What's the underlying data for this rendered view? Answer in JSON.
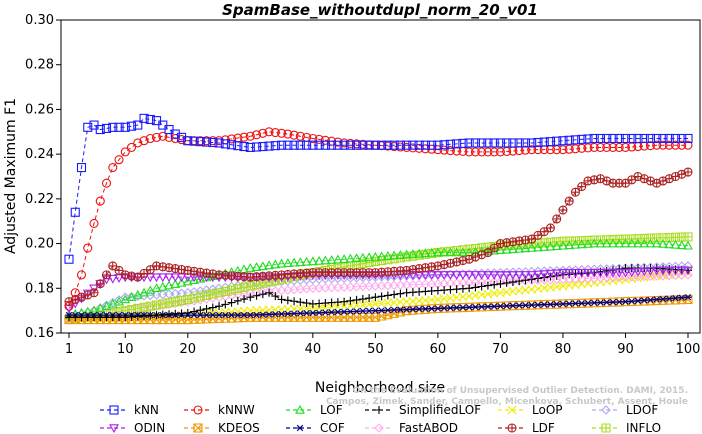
{
  "chart_data": {
    "type": "line",
    "title": "SpamBase_withoutdupl_norm_20_v01",
    "xlabel": "Neighborhood size",
    "ylabel": "Adjusted Maximum F1",
    "xlim": [
      1,
      100
    ],
    "ylim": [
      0.16,
      0.3
    ],
    "xticks": [
      "1",
      "10",
      "20",
      "30",
      "40",
      "50",
      "60",
      "70",
      "80",
      "90",
      "100"
    ],
    "yticks": [
      "0.16",
      "0.18",
      "0.20",
      "0.22",
      "0.24",
      "0.26",
      "0.28",
      "0.30"
    ],
    "legend_position": "bottom",
    "watermark": [
      "Campos, Zimek, Sander, Campello, Micenkova, Schubert, Assent, Houle",
      "On the Evaluation of Unsupervised Outlier Detection. DAMI, 2015."
    ],
    "series": [
      {
        "name": "kNN",
        "color": "#1a1aff",
        "marker": "square",
        "points": [
          [
            1,
            0.193
          ],
          [
            2,
            0.214
          ],
          [
            3,
            0.234
          ],
          [
            4,
            0.252
          ],
          [
            5,
            0.253
          ],
          [
            6,
            0.251
          ],
          [
            8,
            0.252
          ],
          [
            10,
            0.252
          ],
          [
            12,
            0.253
          ],
          [
            13,
            0.256
          ],
          [
            15,
            0.255
          ],
          [
            18,
            0.249
          ],
          [
            20,
            0.246
          ],
          [
            25,
            0.245
          ],
          [
            30,
            0.243
          ],
          [
            35,
            0.244
          ],
          [
            40,
            0.244
          ],
          [
            45,
            0.244
          ],
          [
            50,
            0.244
          ],
          [
            55,
            0.244
          ],
          [
            60,
            0.244
          ],
          [
            65,
            0.245
          ],
          [
            70,
            0.245
          ],
          [
            75,
            0.245
          ],
          [
            80,
            0.246
          ],
          [
            85,
            0.247
          ],
          [
            90,
            0.247
          ],
          [
            95,
            0.247
          ],
          [
            100,
            0.247
          ]
        ]
      },
      {
        "name": "kNNW",
        "color": "#ee1111",
        "marker": "circle",
        "points": [
          [
            1,
            0.172
          ],
          [
            2,
            0.178
          ],
          [
            3,
            0.186
          ],
          [
            4,
            0.198
          ],
          [
            5,
            0.209
          ],
          [
            6,
            0.219
          ],
          [
            7,
            0.227
          ],
          [
            8,
            0.234
          ],
          [
            10,
            0.241
          ],
          [
            12,
            0.245
          ],
          [
            14,
            0.247
          ],
          [
            16,
            0.248
          ],
          [
            20,
            0.246
          ],
          [
            25,
            0.246
          ],
          [
            30,
            0.248
          ],
          [
            33,
            0.25
          ],
          [
            36,
            0.249
          ],
          [
            40,
            0.247
          ],
          [
            45,
            0.245
          ],
          [
            50,
            0.244
          ],
          [
            55,
            0.243
          ],
          [
            60,
            0.242
          ],
          [
            65,
            0.241
          ],
          [
            70,
            0.241
          ],
          [
            75,
            0.242
          ],
          [
            80,
            0.242
          ],
          [
            85,
            0.243
          ],
          [
            90,
            0.243
          ],
          [
            95,
            0.244
          ],
          [
            100,
            0.244
          ]
        ]
      },
      {
        "name": "LOF",
        "color": "#22dd22",
        "marker": "triangle-up",
        "points": [
          [
            1,
            0.168
          ],
          [
            5,
            0.17
          ],
          [
            10,
            0.175
          ],
          [
            15,
            0.18
          ],
          [
            20,
            0.183
          ],
          [
            25,
            0.186
          ],
          [
            30,
            0.189
          ],
          [
            35,
            0.191
          ],
          [
            40,
            0.192
          ],
          [
            45,
            0.193
          ],
          [
            50,
            0.194
          ],
          [
            55,
            0.195
          ],
          [
            60,
            0.196
          ],
          [
            65,
            0.196
          ],
          [
            70,
            0.197
          ],
          [
            75,
            0.198
          ],
          [
            80,
            0.199
          ],
          [
            85,
            0.2
          ],
          [
            90,
            0.2
          ],
          [
            95,
            0.2
          ],
          [
            100,
            0.199
          ]
        ]
      },
      {
        "name": "SimplifiedLOF",
        "color": "#000000",
        "marker": "plus",
        "points": [
          [
            1,
            0.167
          ],
          [
            5,
            0.167
          ],
          [
            10,
            0.167
          ],
          [
            15,
            0.168
          ],
          [
            20,
            0.169
          ],
          [
            25,
            0.172
          ],
          [
            30,
            0.176
          ],
          [
            33,
            0.178
          ],
          [
            35,
            0.175
          ],
          [
            40,
            0.173
          ],
          [
            45,
            0.174
          ],
          [
            50,
            0.176
          ],
          [
            55,
            0.178
          ],
          [
            60,
            0.179
          ],
          [
            65,
            0.18
          ],
          [
            70,
            0.182
          ],
          [
            75,
            0.184
          ],
          [
            80,
            0.186
          ],
          [
            85,
            0.187
          ],
          [
            90,
            0.189
          ],
          [
            95,
            0.189
          ],
          [
            100,
            0.188
          ]
        ]
      },
      {
        "name": "LoOP",
        "color": "#eeee00",
        "marker": "x",
        "points": [
          [
            1,
            0.166
          ],
          [
            10,
            0.167
          ],
          [
            20,
            0.168
          ],
          [
            30,
            0.17
          ],
          [
            40,
            0.171
          ],
          [
            50,
            0.173
          ],
          [
            60,
            0.175
          ],
          [
            70,
            0.178
          ],
          [
            80,
            0.181
          ],
          [
            90,
            0.184
          ],
          [
            100,
            0.187
          ]
        ]
      },
      {
        "name": "LDOF",
        "color": "#aaaaee",
        "marker": "diamond",
        "points": [
          [
            1,
            0.167
          ],
          [
            5,
            0.17
          ],
          [
            10,
            0.176
          ],
          [
            15,
            0.177
          ],
          [
            20,
            0.178
          ],
          [
            25,
            0.18
          ],
          [
            30,
            0.182
          ],
          [
            40,
            0.184
          ],
          [
            50,
            0.185
          ],
          [
            60,
            0.186
          ],
          [
            70,
            0.187
          ],
          [
            80,
            0.188
          ],
          [
            90,
            0.189
          ],
          [
            100,
            0.19
          ]
        ]
      },
      {
        "name": "ODIN",
        "color": "#aa22ee",
        "marker": "triangle-down",
        "points": [
          [
            1,
            0.171
          ],
          [
            5,
            0.18
          ],
          [
            7,
            0.184
          ],
          [
            10,
            0.185
          ],
          [
            15,
            0.185
          ],
          [
            20,
            0.185
          ],
          [
            25,
            0.185
          ],
          [
            30,
            0.185
          ],
          [
            35,
            0.185
          ],
          [
            40,
            0.186
          ],
          [
            45,
            0.186
          ],
          [
            50,
            0.186
          ],
          [
            55,
            0.186
          ],
          [
            60,
            0.186
          ],
          [
            65,
            0.186
          ],
          [
            70,
            0.186
          ],
          [
            75,
            0.186
          ],
          [
            80,
            0.187
          ],
          [
            85,
            0.187
          ],
          [
            90,
            0.187
          ],
          [
            95,
            0.188
          ],
          [
            100,
            0.188
          ]
        ]
      },
      {
        "name": "KDEOS",
        "color": "#ee9900",
        "marker": "square-x",
        "points": [
          [
            1,
            0.166
          ],
          [
            10,
            0.166
          ],
          [
            20,
            0.166
          ],
          [
            30,
            0.167
          ],
          [
            40,
            0.167
          ],
          [
            50,
            0.167
          ],
          [
            55,
            0.17
          ],
          [
            60,
            0.171
          ],
          [
            70,
            0.172
          ],
          [
            80,
            0.173
          ],
          [
            90,
            0.174
          ],
          [
            100,
            0.175
          ]
        ]
      },
      {
        "name": "COF",
        "color": "#000088",
        "marker": "asterisk",
        "points": [
          [
            1,
            0.168
          ],
          [
            10,
            0.168
          ],
          [
            20,
            0.168
          ],
          [
            30,
            0.168
          ],
          [
            40,
            0.169
          ],
          [
            50,
            0.17
          ],
          [
            60,
            0.171
          ],
          [
            70,
            0.172
          ],
          [
            80,
            0.173
          ],
          [
            90,
            0.174
          ],
          [
            100,
            0.176
          ]
        ]
      },
      {
        "name": "FastABOD",
        "color": "#ffaaee",
        "marker": "diamond",
        "points": [
          [
            1,
            0.166
          ],
          [
            10,
            0.17
          ],
          [
            15,
            0.172
          ],
          [
            20,
            0.174
          ],
          [
            25,
            0.176
          ],
          [
            30,
            0.178
          ],
          [
            40,
            0.18
          ],
          [
            50,
            0.181
          ],
          [
            60,
            0.182
          ],
          [
            70,
            0.183
          ],
          [
            80,
            0.184
          ],
          [
            90,
            0.185
          ],
          [
            100,
            0.186
          ]
        ]
      },
      {
        "name": "LDF",
        "color": "#aa2222",
        "marker": "circle-plus",
        "points": [
          [
            1,
            0.174
          ],
          [
            5,
            0.178
          ],
          [
            8,
            0.19
          ],
          [
            10,
            0.186
          ],
          [
            12,
            0.185
          ],
          [
            15,
            0.19
          ],
          [
            20,
            0.188
          ],
          [
            25,
            0.186
          ],
          [
            30,
            0.185
          ],
          [
            35,
            0.186
          ],
          [
            40,
            0.187
          ],
          [
            45,
            0.187
          ],
          [
            50,
            0.187
          ],
          [
            55,
            0.188
          ],
          [
            60,
            0.19
          ],
          [
            65,
            0.193
          ],
          [
            68,
            0.196
          ],
          [
            70,
            0.2
          ],
          [
            75,
            0.202
          ],
          [
            78,
            0.207
          ],
          [
            80,
            0.215
          ],
          [
            82,
            0.223
          ],
          [
            84,
            0.228
          ],
          [
            86,
            0.229
          ],
          [
            88,
            0.227
          ],
          [
            90,
            0.227
          ],
          [
            92,
            0.23
          ],
          [
            95,
            0.227
          ],
          [
            98,
            0.23
          ],
          [
            100,
            0.232
          ]
        ]
      },
      {
        "name": "INFLO",
        "color": "#aadd22",
        "marker": "square-plus",
        "points": [
          [
            1,
            0.166
          ],
          [
            10,
            0.17
          ],
          [
            20,
            0.175
          ],
          [
            30,
            0.181
          ],
          [
            40,
            0.187
          ],
          [
            50,
            0.192
          ],
          [
            60,
            0.196
          ],
          [
            70,
            0.199
          ],
          [
            80,
            0.201
          ],
          [
            90,
            0.202
          ],
          [
            100,
            0.203
          ]
        ]
      }
    ]
  }
}
